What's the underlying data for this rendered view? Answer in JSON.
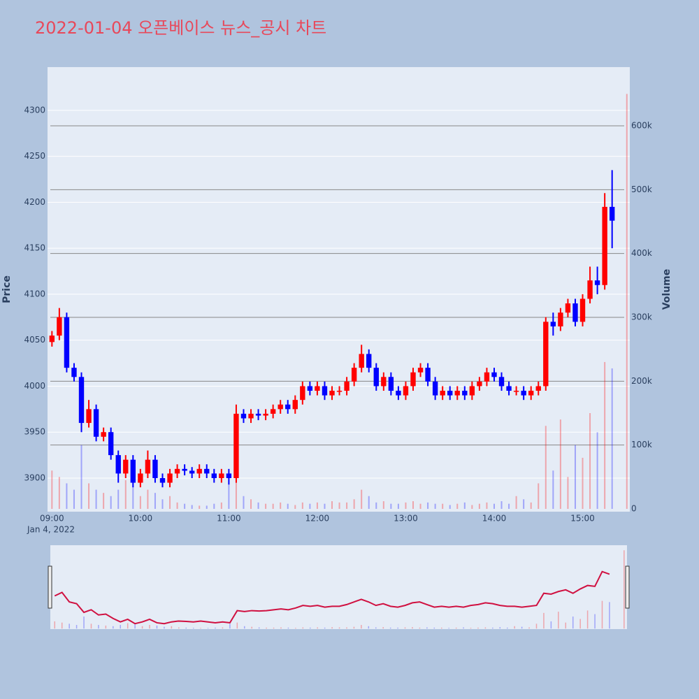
{
  "chart_data": {
    "type": "candlestick",
    "title": "2022-01-04 오픈베이스 뉴스_공시 차트",
    "y_label": "Price",
    "y2_label": "Volume",
    "x_date_label": "Jan 4, 2022",
    "increasing_color": "#ff0000",
    "decreasing_color": "#0000ff",
    "x": [
      "09:00",
      "09:05",
      "09:10",
      "09:15",
      "09:20",
      "09:25",
      "09:30",
      "09:35",
      "09:40",
      "09:45",
      "09:50",
      "09:55",
      "10:00",
      "10:05",
      "10:10",
      "10:15",
      "10:20",
      "10:25",
      "10:30",
      "10:35",
      "10:40",
      "10:45",
      "10:50",
      "10:55",
      "11:00",
      "11:05",
      "11:10",
      "11:15",
      "11:20",
      "11:25",
      "11:30",
      "11:35",
      "11:40",
      "11:45",
      "11:50",
      "11:55",
      "12:00",
      "12:05",
      "12:10",
      "12:15",
      "12:20",
      "12:25",
      "12:30",
      "12:35",
      "12:40",
      "12:45",
      "12:50",
      "12:55",
      "13:00",
      "13:05",
      "13:10",
      "13:15",
      "13:20",
      "13:25",
      "13:30",
      "13:35",
      "13:40",
      "13:45",
      "13:50",
      "13:55",
      "14:00",
      "14:05",
      "14:10",
      "14:15",
      "14:20",
      "14:25",
      "14:30",
      "14:35",
      "14:40",
      "14:45",
      "14:50",
      "14:55",
      "15:00",
      "15:05",
      "15:10",
      "15:15",
      "15:20",
      "15:30"
    ],
    "open": [
      4048,
      4055,
      4075,
      4020,
      4010,
      3960,
      3975,
      3945,
      3950,
      3925,
      3905,
      3920,
      3895,
      3905,
      3920,
      3900,
      3895,
      3905,
      3910,
      3908,
      3905,
      3910,
      3905,
      3900,
      3905,
      3900,
      3970,
      3965,
      3970,
      3968,
      3970,
      3975,
      3980,
      3975,
      3985,
      4000,
      3995,
      4000,
      3990,
      3995,
      3995,
      4005,
      4020,
      4035,
      4020,
      4000,
      4010,
      3995,
      3990,
      4000,
      4015,
      4020,
      4005,
      3990,
      3995,
      3990,
      3995,
      3990,
      4000,
      4005,
      4015,
      4010,
      4000,
      3995,
      3995,
      3990,
      3995,
      4000,
      4070,
      4065,
      4080,
      4090,
      4070,
      4095,
      4115,
      4110,
      4195,
      null
    ],
    "high": [
      4060,
      4085,
      4080,
      4025,
      4015,
      3985,
      3980,
      3955,
      3955,
      3930,
      3925,
      3925,
      3910,
      3930,
      3925,
      3905,
      3910,
      3915,
      3915,
      3912,
      3915,
      3915,
      3910,
      3910,
      3910,
      3980,
      3975,
      3975,
      3975,
      3975,
      3980,
      3985,
      3985,
      3990,
      4005,
      4005,
      4005,
      4005,
      4000,
      4000,
      4010,
      4025,
      4045,
      4040,
      4025,
      4015,
      4015,
      4000,
      4005,
      4020,
      4025,
      4025,
      4010,
      4000,
      4000,
      4000,
      4000,
      4005,
      4010,
      4020,
      4020,
      4015,
      4005,
      4000,
      4000,
      4000,
      4005,
      4075,
      4080,
      4085,
      4095,
      4095,
      4100,
      4130,
      4130,
      4210,
      4235,
      null
    ],
    "low": [
      4043,
      4050,
      4015,
      4005,
      3950,
      3955,
      3940,
      3940,
      3920,
      3895,
      3900,
      3890,
      3890,
      3900,
      3895,
      3890,
      3890,
      3900,
      3903,
      3900,
      3900,
      3900,
      3895,
      3895,
      3893,
      3895,
      3960,
      3960,
      3963,
      3963,
      3965,
      3970,
      3970,
      3970,
      3980,
      3990,
      3990,
      3985,
      3985,
      3990,
      3990,
      4000,
      4015,
      4015,
      3995,
      3995,
      3990,
      3985,
      3985,
      3995,
      4010,
      4000,
      3985,
      3985,
      3985,
      3985,
      3985,
      3985,
      3995,
      4000,
      4005,
      3995,
      3990,
      3990,
      3985,
      3985,
      3990,
      3995,
      4055,
      4060,
      4075,
      4065,
      4065,
      4090,
      4100,
      4105,
      4150,
      null
    ],
    "close": [
      4055,
      4075,
      4020,
      4010,
      3960,
      3975,
      3945,
      3950,
      3925,
      3905,
      3920,
      3895,
      3905,
      3920,
      3900,
      3895,
      3905,
      3910,
      3908,
      3905,
      3910,
      3905,
      3900,
      3905,
      3900,
      3970,
      3965,
      3970,
      3968,
      3970,
      3975,
      3980,
      3975,
      3985,
      4000,
      3995,
      4000,
      3990,
      3995,
      3995,
      4005,
      4020,
      4035,
      4020,
      4000,
      4010,
      3995,
      3990,
      4000,
      4015,
      4020,
      4005,
      3990,
      3995,
      3990,
      3995,
      3990,
      4000,
      4005,
      4015,
      4010,
      4000,
      3995,
      3995,
      3990,
      3995,
      4000,
      4070,
      4065,
      4080,
      4090,
      4070,
      4095,
      4115,
      4110,
      4195,
      4180,
      null
    ],
    "volume": [
      60000,
      50000,
      40000,
      30000,
      100000,
      40000,
      30000,
      25000,
      20000,
      30000,
      45000,
      35000,
      20000,
      30000,
      25000,
      15000,
      20000,
      10000,
      8000,
      6000,
      5000,
      5000,
      8000,
      10000,
      40000,
      50000,
      20000,
      15000,
      10000,
      8000,
      8000,
      10000,
      8000,
      6000,
      10000,
      8000,
      10000,
      8000,
      12000,
      10000,
      10000,
      15000,
      30000,
      20000,
      10000,
      12000,
      8000,
      8000,
      10000,
      12000,
      8000,
      10000,
      8000,
      8000,
      6000,
      8000,
      10000,
      6000,
      8000,
      10000,
      8000,
      12000,
      8000,
      20000,
      15000,
      10000,
      40000,
      130000,
      60000,
      140000,
      50000,
      100000,
      80000,
      150000,
      120000,
      230000,
      220000,
      650000
    ],
    "xlim": [
      "08:57",
      "15:32"
    ],
    "xticks": [
      "09:00",
      "10:00",
      "11:00",
      "12:00",
      "13:00",
      "14:00",
      "15:00"
    ],
    "ylim": [
      3863.5,
      4347
    ],
    "yticks": [
      3900,
      3950,
      4000,
      4050,
      4100,
      4150,
      4200,
      4250,
      4300
    ],
    "y2lim": [
      -4400,
      692000
    ],
    "y2ticks": [
      0,
      {
        "value": 100000,
        "label": "100k"
      },
      {
        "value": 200000,
        "label": "200k"
      },
      {
        "value": 300000,
        "label": "300k"
      },
      {
        "value": 400000,
        "label": "400k"
      },
      {
        "value": 500000,
        "label": "500k"
      },
      {
        "value": 600000,
        "label": "600k"
      }
    ],
    "grid": true
  }
}
